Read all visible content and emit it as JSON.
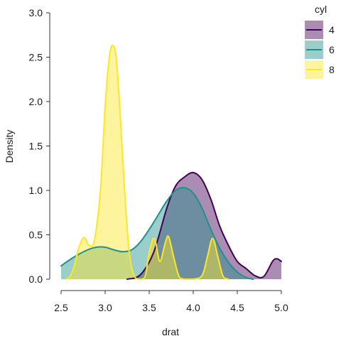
{
  "chart_data": {
    "type": "area",
    "xlabel": "drat",
    "ylabel": "Density",
    "xlim": [
      2.5,
      5.0
    ],
    "ylim": [
      0,
      3.0
    ],
    "xticks": [
      "2.5",
      "3.0",
      "3.5",
      "4.0",
      "4.5",
      "5.0"
    ],
    "yticks": [
      "0.0",
      "0.5",
      "1.0",
      "1.5",
      "2.0",
      "2.5",
      "3.0"
    ],
    "grid": false,
    "legend": {
      "title": "cyl",
      "position": "right"
    },
    "series": [
      {
        "name": "4",
        "line_color": "#440154",
        "fill_color": "#440154",
        "x": [
          3.25,
          3.4,
          3.55,
          3.7,
          3.8,
          3.9,
          4.0,
          4.1,
          4.2,
          4.3,
          4.4,
          4.5,
          4.6,
          4.7,
          4.8,
          4.9,
          4.95,
          5.0
        ],
        "y": [
          0.0,
          0.05,
          0.3,
          0.8,
          1.05,
          1.15,
          1.2,
          1.12,
          0.9,
          0.6,
          0.38,
          0.2,
          0.12,
          0.04,
          0.03,
          0.2,
          0.23,
          0.2
        ]
      },
      {
        "name": "6",
        "line_color": "#21908C",
        "fill_color": "#21908C",
        "x": [
          2.5,
          2.6,
          2.7,
          2.8,
          2.9,
          3.0,
          3.1,
          3.2,
          3.3,
          3.4,
          3.5,
          3.6,
          3.7,
          3.8,
          3.9,
          4.0,
          4.1,
          4.2,
          4.3,
          4.4,
          4.5,
          4.6,
          4.68
        ],
        "y": [
          0.15,
          0.22,
          0.28,
          0.33,
          0.36,
          0.36,
          0.33,
          0.31,
          0.33,
          0.42,
          0.56,
          0.72,
          0.88,
          1.0,
          1.03,
          0.97,
          0.8,
          0.56,
          0.35,
          0.19,
          0.08,
          0.02,
          0.0
        ]
      },
      {
        "name": "8",
        "line_color": "#FDE725",
        "fill_color": "#FDE725",
        "x": [
          2.55,
          2.6,
          2.65,
          2.7,
          2.76,
          2.82,
          2.88,
          2.95,
          3.0,
          3.05,
          3.09,
          3.13,
          3.18,
          3.23,
          3.28,
          3.33,
          3.38,
          3.42,
          3.46,
          3.5,
          3.56,
          3.62,
          3.68,
          3.72,
          3.78,
          3.84,
          3.9,
          4.0,
          4.1,
          4.16,
          4.22,
          4.28,
          4.34,
          4.4
        ],
        "y": [
          0.0,
          0.03,
          0.15,
          0.35,
          0.47,
          0.38,
          0.45,
          1.05,
          1.95,
          2.52,
          2.63,
          2.45,
          1.7,
          0.85,
          0.25,
          0.04,
          0.0,
          0.0,
          0.05,
          0.3,
          0.46,
          0.2,
          0.4,
          0.48,
          0.24,
          0.03,
          0.0,
          0.0,
          0.04,
          0.25,
          0.46,
          0.25,
          0.03,
          0.0
        ]
      }
    ]
  }
}
